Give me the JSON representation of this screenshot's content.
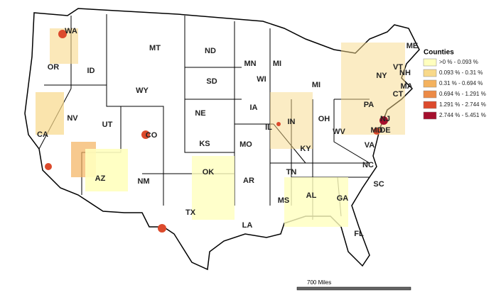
{
  "map": {
    "state_labels": [
      "WA",
      "OR",
      "ID",
      "MT",
      "WY",
      "ND",
      "SD",
      "MN",
      "WI",
      "MI",
      "MI",
      "NE",
      "IA",
      "IL",
      "IN",
      "OH",
      "PA",
      "NY",
      "ME",
      "VT",
      "NH",
      "MA",
      "CT",
      "NJ",
      "MD",
      "DE",
      "WV",
      "VA",
      "KY",
      "TN",
      "NC",
      "SC",
      "GA",
      "AL",
      "MS",
      "FL",
      "LA",
      "AR",
      "MO",
      "KS",
      "OK",
      "TX",
      "NM",
      "AZ",
      "CO",
      "UT",
      "NV",
      "CA"
    ],
    "legend": {
      "title": "Counties",
      "items": [
        {
          "label": ">0 % - 0.093 %",
          "color": "#ffffbe"
        },
        {
          "label": "0.093 % - 0.31 %",
          "color": "#f8d98a"
        },
        {
          "label": "0.31 % - 0.694 %",
          "color": "#f4b25e"
        },
        {
          "label": "0.694 % - 1.291 %",
          "color": "#ec8a46"
        },
        {
          "label": "1.291 % - 2.744 %",
          "color": "#dc4a2c"
        },
        {
          "label": "2.744 % - 5.451 %",
          "color": "#a50f2d"
        }
      ]
    },
    "scale_bar": {
      "label": "700 Miles"
    }
  }
}
